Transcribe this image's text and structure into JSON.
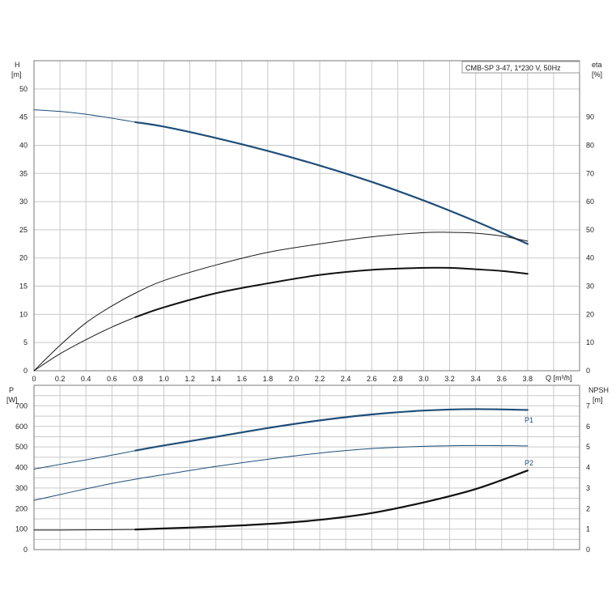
{
  "chart_data": [
    {
      "type": "line",
      "title": "CMB-SP 3-47, 1*230 V, 50Hz",
      "xlabel": "Q [m³/h]",
      "ylabel": "H",
      "ylabel_unit": "[m]",
      "y2label": "eta",
      "y2label_unit": "[%]",
      "xlim": [
        0,
        4.2
      ],
      "ylim": [
        0,
        55
      ],
      "y2lim": [
        0,
        110
      ],
      "grid": true,
      "x_ticks": [
        "0",
        "0.2",
        "0.4",
        "0.6",
        "0.8",
        "1.0",
        "1.2",
        "1.4",
        "1.6",
        "1.8",
        "2.0",
        "2.2",
        "2.4",
        "2.6",
        "2.8",
        "3.0",
        "3.2",
        "3.4",
        "3.6",
        "3.8"
      ],
      "y_ticks": [
        "0",
        "5",
        "10",
        "15",
        "20",
        "25",
        "30",
        "35",
        "40",
        "45",
        "50"
      ],
      "y2_ticks": [
        "0",
        "10",
        "20",
        "30",
        "40",
        "50",
        "60",
        "70",
        "80",
        "90"
      ],
      "series": [
        {
          "role": "head",
          "axis": "left",
          "color": "#1f4e79",
          "width": 1.0,
          "x": [
            0,
            0.2,
            0.4,
            0.6,
            0.78
          ],
          "y": [
            46.3,
            46.0,
            45.5,
            44.8,
            44.1
          ]
        },
        {
          "role": "head",
          "axis": "left",
          "color": "#1f4e79",
          "width": 2.2,
          "x": [
            0.78,
            1.0,
            1.4,
            1.8,
            2.2,
            2.6,
            3.0,
            3.4,
            3.8
          ],
          "y": [
            44.1,
            43.3,
            41.3,
            39.0,
            36.4,
            33.5,
            30.2,
            26.5,
            22.5
          ]
        },
        {
          "role": "eta-total",
          "axis": "right",
          "color": "#1a1a1a",
          "width": 1.0,
          "x": [
            0,
            0.2,
            0.4,
            0.6,
            0.8,
            1.0,
            1.4,
            1.8,
            2.2,
            2.6,
            3.0,
            3.2,
            3.4,
            3.6,
            3.8
          ],
          "y": [
            0,
            9,
            17,
            23,
            28,
            32,
            37.5,
            42,
            45,
            47.5,
            49,
            49.1,
            48.8,
            47.8,
            46.0
          ]
        },
        {
          "role": "eta-pump",
          "axis": "right",
          "color": "#1a1a1a",
          "width": 1.0,
          "x": [
            0,
            0.2,
            0.4,
            0.6,
            0.78
          ],
          "y": [
            0,
            6,
            11,
            15.5,
            19
          ]
        },
        {
          "role": "eta-pump",
          "axis": "right",
          "color": "#111111",
          "width": 2.0,
          "x": [
            0.78,
            1.0,
            1.4,
            1.8,
            2.2,
            2.6,
            3.0,
            3.2,
            3.4,
            3.6,
            3.8
          ],
          "y": [
            19,
            22.5,
            27.5,
            31,
            34,
            35.8,
            36.5,
            36.5,
            36.0,
            35.4,
            34.4
          ]
        }
      ]
    },
    {
      "type": "line",
      "xlabel": "",
      "ylabel": "P",
      "ylabel_unit": "[W]",
      "y2label": "NPSH",
      "y2label_unit": "[m]",
      "xlim": [
        0,
        4.2
      ],
      "ylim": [
        0,
        800
      ],
      "y2lim": [
        0,
        8
      ],
      "grid": true,
      "y_ticks": [
        "0",
        "100",
        "200",
        "300",
        "400",
        "500",
        "600",
        "700"
      ],
      "y2_ticks": [
        "0",
        "1",
        "2",
        "3",
        "4",
        "5",
        "6",
        "7"
      ],
      "series": [
        {
          "name": "P1",
          "axis": "left",
          "color": "#1f4e79",
          "width": 1.0,
          "x": [
            0,
            0.2,
            0.4,
            0.6,
            0.78
          ],
          "y": [
            392,
            415,
            437,
            460,
            482
          ]
        },
        {
          "name": "P1",
          "axis": "left",
          "color": "#1f4e79",
          "width": 2.2,
          "x": [
            0.78,
            1.0,
            1.4,
            1.8,
            2.2,
            2.6,
            3.0,
            3.4,
            3.8
          ],
          "y": [
            482,
            507,
            549,
            592,
            629,
            658,
            677,
            684,
            680
          ]
        },
        {
          "name": "P2",
          "axis": "left",
          "color": "#1f4e79",
          "width": 1.0,
          "x": [
            0,
            0.2,
            0.4,
            0.6,
            0.8,
            1.0,
            1.4,
            1.8,
            2.2,
            2.6,
            3.0,
            3.4,
            3.8
          ],
          "y": [
            240,
            268,
            296,
            322,
            345,
            365,
            405,
            440,
            470,
            492,
            503,
            507,
            505
          ]
        },
        {
          "role": "npsh",
          "axis": "right",
          "color": "#1a1a1a",
          "width": 1.0,
          "x": [
            0,
            0.2,
            0.4,
            0.6,
            0.78
          ],
          "y": [
            0.95,
            0.95,
            0.96,
            0.97,
            0.98
          ]
        },
        {
          "role": "npsh",
          "axis": "right",
          "color": "#111111",
          "width": 2.2,
          "x": [
            0.78,
            1.0,
            1.4,
            1.8,
            2.2,
            2.6,
            3.0,
            3.4,
            3.8
          ],
          "y": [
            0.98,
            1.03,
            1.12,
            1.25,
            1.45,
            1.78,
            2.3,
            2.95,
            3.85
          ]
        }
      ]
    }
  ]
}
